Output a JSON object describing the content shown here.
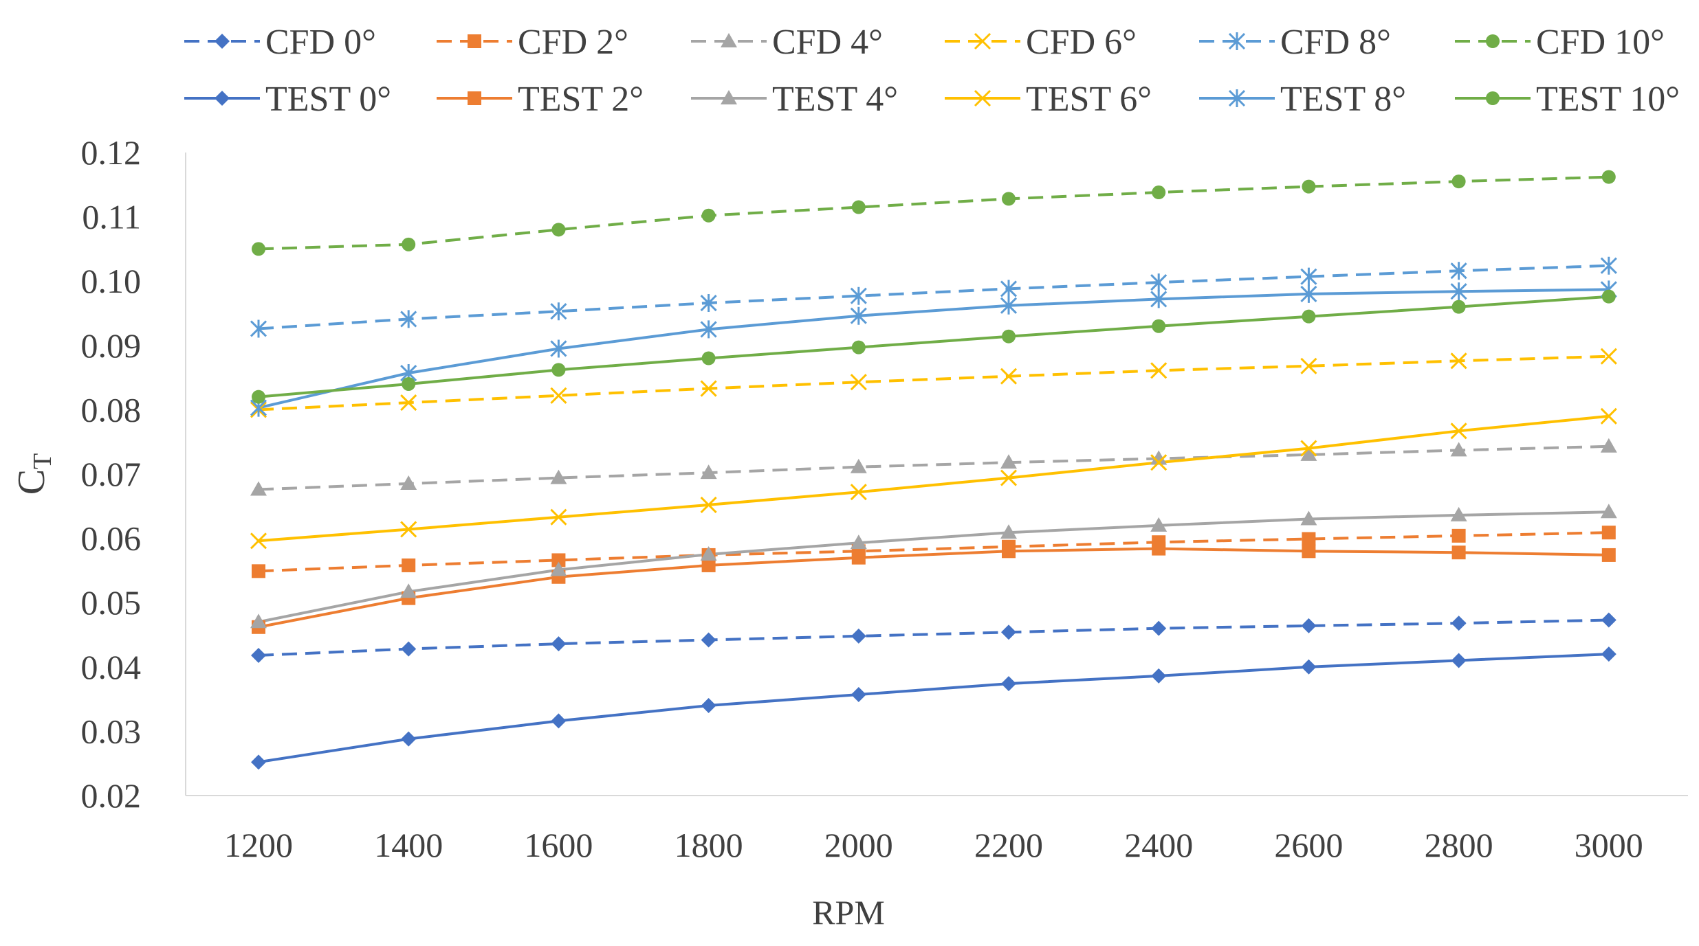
{
  "chart_data": {
    "type": "line",
    "title": "",
    "xlabel": "RPM",
    "ylabel": "C",
    "ylabel_subscript": "T",
    "categories": [
      "1200",
      "1400",
      "1600",
      "1800",
      "2000",
      "2200",
      "2400",
      "2600",
      "2800",
      "3000"
    ],
    "ylim": [
      0.02,
      0.12
    ],
    "yticks": [
      "0.02",
      "0.03",
      "0.04",
      "0.05",
      "0.06",
      "0.07",
      "0.08",
      "0.09",
      "0.10",
      "0.11",
      "0.12"
    ],
    "grid": false,
    "legend_position": "top",
    "series": [
      {
        "name": "CFD 0°",
        "dash": true,
        "color": "#4472C4",
        "marker": "diamond",
        "values": [
          0.0418,
          0.0428,
          0.0436,
          0.0442,
          0.0448,
          0.0454,
          0.046,
          0.0464,
          0.0468,
          0.0473
        ]
      },
      {
        "name": "CFD 2°",
        "dash": true,
        "color": "#ED7D31",
        "marker": "square",
        "values": [
          0.0549,
          0.0558,
          0.0566,
          0.0574,
          0.058,
          0.0587,
          0.0594,
          0.0599,
          0.0604,
          0.0609
        ]
      },
      {
        "name": "CFD 4°",
        "dash": true,
        "color": "#A5A5A5",
        "marker": "triangle",
        "values": [
          0.0676,
          0.0685,
          0.0694,
          0.0702,
          0.0711,
          0.0718,
          0.0724,
          0.073,
          0.0737,
          0.0743
        ]
      },
      {
        "name": "CFD 6°",
        "dash": true,
        "color": "#FFC000",
        "marker": "x",
        "values": [
          0.08,
          0.0811,
          0.0822,
          0.0833,
          0.0843,
          0.0852,
          0.0861,
          0.0868,
          0.0876,
          0.0883
        ]
      },
      {
        "name": "CFD 8°",
        "dash": true,
        "color": "#5B9BD5",
        "marker": "star",
        "values": [
          0.0926,
          0.0941,
          0.0953,
          0.0966,
          0.0977,
          0.0988,
          0.0998,
          0.1007,
          0.1016,
          0.1024
        ]
      },
      {
        "name": "CFD 10°",
        "dash": true,
        "color": "#70AD47",
        "marker": "circle",
        "values": [
          0.105,
          0.1057,
          0.108,
          0.1102,
          0.1115,
          0.1128,
          0.1138,
          0.1147,
          0.1155,
          0.1162
        ]
      },
      {
        "name": "TEST 0°",
        "dash": false,
        "color": "#4472C4",
        "marker": "diamond",
        "values": [
          0.0252,
          0.0288,
          0.0316,
          0.034,
          0.0357,
          0.0374,
          0.0386,
          0.04,
          0.041,
          0.042
        ]
      },
      {
        "name": "TEST 2°",
        "dash": false,
        "color": "#ED7D31",
        "marker": "square",
        "values": [
          0.0462,
          0.0507,
          0.054,
          0.0558,
          0.057,
          0.058,
          0.0584,
          0.058,
          0.0578,
          0.0574
        ]
      },
      {
        "name": "TEST 4°",
        "dash": false,
        "color": "#A5A5A5",
        "marker": "triangle",
        "values": [
          0.047,
          0.0517,
          0.0551,
          0.0575,
          0.0593,
          0.0609,
          0.062,
          0.063,
          0.0636,
          0.0641
        ]
      },
      {
        "name": "TEST 6°",
        "dash": false,
        "color": "#FFC000",
        "marker": "x",
        "values": [
          0.0596,
          0.0614,
          0.0633,
          0.0652,
          0.0672,
          0.0694,
          0.0718,
          0.074,
          0.0767,
          0.079
        ]
      },
      {
        "name": "TEST 8°",
        "dash": false,
        "color": "#5B9BD5",
        "marker": "star",
        "values": [
          0.0803,
          0.0857,
          0.0895,
          0.0925,
          0.0946,
          0.0962,
          0.0972,
          0.098,
          0.0984,
          0.0987
        ]
      },
      {
        "name": "TEST 10°",
        "dash": false,
        "color": "#70AD47",
        "marker": "circle",
        "values": [
          0.082,
          0.084,
          0.0862,
          0.088,
          0.0897,
          0.0914,
          0.093,
          0.0945,
          0.096,
          0.0976
        ]
      }
    ]
  }
}
